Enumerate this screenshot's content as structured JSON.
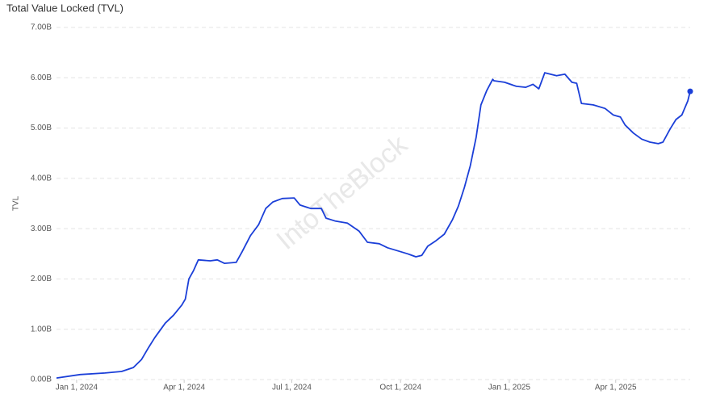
{
  "chart_data": {
    "type": "line",
    "title": "Total Value Locked (TVL)",
    "ylabel": "TVL",
    "watermark": "IntoTheBlock",
    "x": [
      "2023-12-15",
      "2024-01-04",
      "2024-01-25",
      "2024-02-08",
      "2024-02-18",
      "2024-02-25",
      "2024-03-02",
      "2024-03-07",
      "2024-03-16",
      "2024-03-23",
      "2024-03-30",
      "2024-04-02",
      "2024-04-05",
      "2024-04-09",
      "2024-04-13",
      "2024-04-23",
      "2024-04-29",
      "2024-05-05",
      "2024-05-15",
      "2024-05-20",
      "2024-05-27",
      "2024-06-03",
      "2024-06-09",
      "2024-06-15",
      "2024-06-23",
      "2024-07-03",
      "2024-07-08",
      "2024-07-17",
      "2024-07-26",
      "2024-07-30",
      "2024-08-07",
      "2024-08-17",
      "2024-08-27",
      "2024-09-03",
      "2024-09-13",
      "2024-09-20",
      "2024-09-30",
      "2024-10-07",
      "2024-10-14",
      "2024-10-19",
      "2024-10-24",
      "2024-10-31",
      "2024-11-07",
      "2024-11-14",
      "2024-11-19",
      "2024-11-24",
      "2024-11-29",
      "2024-12-04",
      "2024-12-08",
      "2024-12-13",
      "2024-12-18",
      "2024-12-19",
      "2024-12-28",
      "2025-01-07",
      "2025-01-15",
      "2025-01-21",
      "2025-01-26",
      "2025-01-31",
      "2025-02-10",
      "2025-02-17",
      "2025-02-23",
      "2025-02-27",
      "2025-03-03",
      "2025-03-13",
      "2025-03-23",
      "2025-03-30",
      "2025-04-05",
      "2025-04-09",
      "2025-04-16",
      "2025-04-23",
      "2025-04-30",
      "2025-05-07",
      "2025-05-11",
      "2025-05-17",
      "2025-05-22",
      "2025-05-27",
      "2025-06-01",
      "2025-06-03"
    ],
    "series": [
      {
        "name": "TVL",
        "color": "#1b3fd8",
        "values": [
          0.03,
          0.1,
          0.13,
          0.16,
          0.24,
          0.4,
          0.64,
          0.83,
          1.12,
          1.28,
          1.48,
          1.6,
          2.0,
          2.17,
          2.38,
          2.36,
          2.38,
          2.31,
          2.33,
          2.54,
          2.86,
          3.08,
          3.4,
          3.53,
          3.6,
          3.61,
          3.47,
          3.4,
          3.4,
          3.21,
          3.15,
          3.11,
          2.95,
          2.73,
          2.7,
          2.62,
          2.55,
          2.5,
          2.44,
          2.47,
          2.65,
          2.76,
          2.89,
          3.18,
          3.45,
          3.82,
          4.25,
          4.82,
          5.46,
          5.75,
          5.97,
          5.94,
          5.91,
          5.83,
          5.81,
          5.87,
          5.78,
          6.1,
          6.04,
          6.07,
          5.91,
          5.89,
          5.49,
          5.46,
          5.39,
          5.26,
          5.22,
          5.06,
          4.9,
          4.78,
          4.72,
          4.69,
          4.72,
          4.98,
          5.17,
          5.26,
          5.54,
          5.73
        ]
      }
    ],
    "xlim": [
      "2023-12-15",
      "2025-06-03"
    ],
    "xticks": [
      {
        "value": "2024-01-01",
        "label": "Jan 1, 2024"
      },
      {
        "value": "2024-04-01",
        "label": "Apr 1, 2024"
      },
      {
        "value": "2024-07-01",
        "label": "Jul 1, 2024"
      },
      {
        "value": "2024-10-01",
        "label": "Oct 1, 2024"
      },
      {
        "value": "2025-01-01",
        "label": "Jan 1, 2025"
      },
      {
        "value": "2025-04-01",
        "label": "Apr 1, 2025"
      }
    ],
    "ylim": [
      0,
      7
    ],
    "yticks": [
      {
        "value": 0,
        "label": "0.00B"
      },
      {
        "value": 1,
        "label": "1.00B"
      },
      {
        "value": 2,
        "label": "2.00B"
      },
      {
        "value": 3,
        "label": "3.00B"
      },
      {
        "value": 4,
        "label": "4.00B"
      },
      {
        "value": 5,
        "label": "5.00B"
      },
      {
        "value": 6,
        "label": "6.00B"
      },
      {
        "value": 7,
        "label": "7.00B"
      }
    ],
    "grid": true
  }
}
